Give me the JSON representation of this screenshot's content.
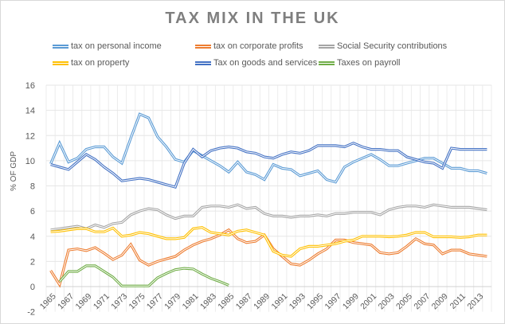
{
  "chart_data": {
    "type": "line",
    "title": "TAX MIX IN THE UK",
    "xlabel": "",
    "ylabel": "% OF GDP",
    "ylim": [
      -2,
      16
    ],
    "yticks": [
      -2,
      0,
      2,
      4,
      6,
      8,
      10,
      12,
      14,
      16
    ],
    "grid": true,
    "legend_position": "top",
    "x": [
      1965,
      1966,
      1967,
      1968,
      1969,
      1970,
      1971,
      1972,
      1973,
      1974,
      1975,
      1976,
      1977,
      1978,
      1979,
      1980,
      1981,
      1982,
      1983,
      1984,
      1985,
      1986,
      1987,
      1988,
      1989,
      1990,
      1991,
      1992,
      1993,
      1994,
      1995,
      1996,
      1997,
      1998,
      1999,
      2000,
      2001,
      2002,
      2003,
      2004,
      2005,
      2006,
      2007,
      2008,
      2009,
      2010,
      2011,
      2012,
      2013,
      2014
    ],
    "xtick_labels": [
      "1965",
      "1967",
      "1969",
      "1971",
      "1973",
      "1975",
      "1977",
      "1979",
      "1981",
      "1983",
      "1985",
      "1987",
      "1989",
      "1991",
      "1993",
      "1995",
      "1997",
      "1999",
      "2001",
      "2003",
      "2005",
      "2007",
      "2009",
      "2011",
      "2013"
    ],
    "series": [
      {
        "name": "tax on personal income",
        "color": "#5b9bd5",
        "values": [
          9.75,
          11.4,
          9.9,
          10.2,
          10.9,
          11.1,
          11.1,
          10.3,
          9.8,
          11.8,
          13.7,
          13.4,
          11.9,
          11.1,
          10.1,
          9.9,
          10.8,
          10.4,
          10.0,
          9.6,
          9.1,
          9.9,
          9.1,
          8.9,
          8.5,
          9.7,
          9.4,
          9.3,
          8.8,
          9.0,
          9.2,
          8.5,
          8.3,
          9.5,
          9.9,
          10.2,
          10.5,
          10.1,
          9.6,
          9.6,
          9.8,
          10.0,
          10.2,
          10.2,
          9.8,
          9.4,
          9.4,
          9.2,
          9.2,
          9.0
        ]
      },
      {
        "name": "tax on corporate profits",
        "color": "#ed7d31",
        "values": [
          1.27,
          0.15,
          2.9,
          3.0,
          2.85,
          3.1,
          2.65,
          2.15,
          2.5,
          3.35,
          2.1,
          1.7,
          2.0,
          2.2,
          2.4,
          2.9,
          3.3,
          3.6,
          3.8,
          4.1,
          4.5,
          3.8,
          3.5,
          3.6,
          4.1,
          3.0,
          2.4,
          1.8,
          1.7,
          2.1,
          2.6,
          3.0,
          3.7,
          3.7,
          3.5,
          3.4,
          3.3,
          2.7,
          2.6,
          2.7,
          3.2,
          3.8,
          3.4,
          3.3,
          2.6,
          2.9,
          2.9,
          2.6,
          2.5,
          2.4
        ]
      },
      {
        "name": "Social Security contributions",
        "color": "#a5a5a5",
        "values": [
          4.5,
          4.6,
          4.7,
          4.8,
          4.6,
          4.9,
          4.7,
          5.0,
          5.1,
          5.7,
          6.0,
          6.2,
          6.1,
          5.7,
          5.4,
          5.6,
          5.6,
          6.3,
          6.4,
          6.4,
          6.3,
          6.5,
          6.2,
          6.3,
          5.8,
          5.6,
          5.6,
          5.5,
          5.6,
          5.6,
          5.7,
          5.6,
          5.8,
          5.8,
          5.9,
          5.9,
          5.9,
          5.7,
          6.1,
          6.3,
          6.4,
          6.4,
          6.3,
          6.5,
          6.4,
          6.3,
          6.3,
          6.3,
          6.2,
          6.1
        ]
      },
      {
        "name": "tax on property",
        "color": "#ffc000",
        "values": [
          4.35,
          4.4,
          4.5,
          4.6,
          4.6,
          4.35,
          4.35,
          4.65,
          4.0,
          4.1,
          4.3,
          4.2,
          4.0,
          3.8,
          3.8,
          3.9,
          4.6,
          4.7,
          4.3,
          4.2,
          4.1,
          4.4,
          4.5,
          4.3,
          4.1,
          2.8,
          2.5,
          2.4,
          3.0,
          3.2,
          3.2,
          3.3,
          3.4,
          3.6,
          3.7,
          4.0,
          4.0,
          4.0,
          3.95,
          4.0,
          4.1,
          4.3,
          4.3,
          3.95,
          3.95,
          3.95,
          3.9,
          3.95,
          4.1,
          4.1
        ]
      },
      {
        "name": "Tax on goods and services",
        "color": "#4472c4",
        "values": [
          9.7,
          9.5,
          9.3,
          9.9,
          10.5,
          10.1,
          9.5,
          9.0,
          8.4,
          8.5,
          8.6,
          8.5,
          8.3,
          8.1,
          7.9,
          9.8,
          10.9,
          10.3,
          10.8,
          11.0,
          11.1,
          11.0,
          10.7,
          10.6,
          10.3,
          10.2,
          10.5,
          10.7,
          10.6,
          10.8,
          11.2,
          11.2,
          11.2,
          11.1,
          11.4,
          11.1,
          10.9,
          10.9,
          10.8,
          10.8,
          10.3,
          10.1,
          9.9,
          9.8,
          9.4,
          11.0,
          10.9,
          10.9,
          10.9,
          10.9
        ]
      },
      {
        "name": "Taxes on payroll",
        "color": "#70ad47",
        "values": [
          null,
          0.4,
          1.2,
          1.2,
          1.65,
          1.65,
          1.2,
          0.75,
          0.05,
          0.05,
          0.05,
          0.05,
          0.7,
          1.05,
          1.35,
          1.45,
          1.4,
          1.0,
          0.65,
          0.4,
          0.1,
          null,
          null,
          null,
          null,
          null,
          null,
          null,
          null,
          null,
          null,
          null,
          null,
          null,
          null,
          null,
          null,
          null,
          null,
          null,
          null,
          null,
          null,
          null,
          null,
          null,
          null,
          null,
          null,
          null
        ]
      }
    ]
  }
}
